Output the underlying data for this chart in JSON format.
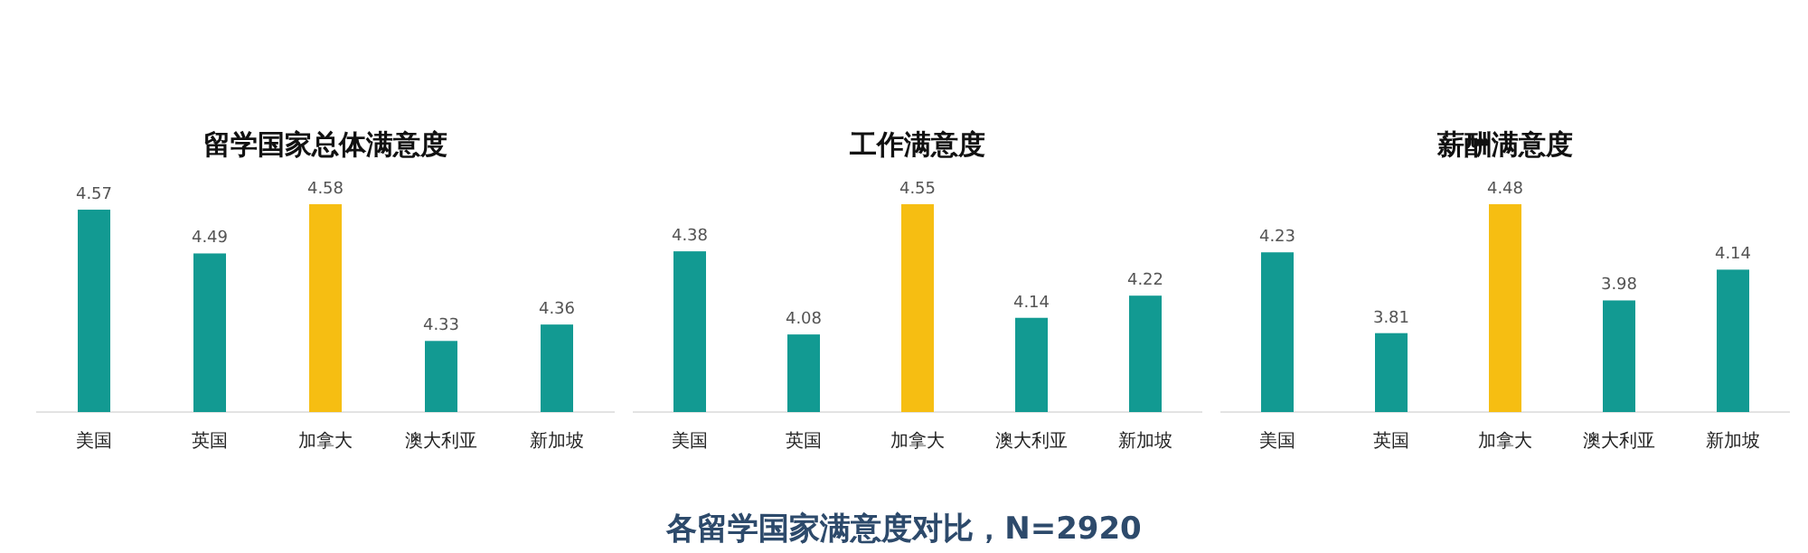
{
  "chart_data": [
    {
      "type": "bar",
      "title": "留学国家总体满意度",
      "categories": [
        "美国",
        "英国",
        "加拿大",
        "澳大利亚",
        "新加坡"
      ],
      "values": [
        4.57,
        4.49,
        4.58,
        4.33,
        4.36
      ],
      "colors": [
        "#129a92",
        "#129a92",
        "#f6be12",
        "#129a92",
        "#129a92"
      ],
      "ylim": [
        4.2,
        4.58
      ],
      "data_labels": true,
      "tick_labels": "x"
    },
    {
      "type": "bar",
      "title": "工作满意度",
      "categories": [
        "美国",
        "英国",
        "加拿大",
        "澳大利亚",
        "新加坡"
      ],
      "values": [
        4.38,
        4.08,
        4.55,
        4.14,
        4.22
      ],
      "colors": [
        "#129a92",
        "#129a92",
        "#f6be12",
        "#129a92",
        "#129a92"
      ],
      "ylim": [
        3.8,
        4.55
      ],
      "data_labels": true,
      "tick_labels": "x",
      "annotations": [
        "各留学国家满意度对比，N=2920"
      ]
    },
    {
      "type": "bar",
      "title": "薪酬满意度",
      "categories": [
        "美国",
        "英国",
        "加拿大",
        "澳大利亚",
        "新加坡"
      ],
      "values": [
        4.23,
        3.81,
        4.48,
        3.98,
        4.14
      ],
      "colors": [
        "#129a92",
        "#129a92",
        "#f6be12",
        "#129a92",
        "#129a92"
      ],
      "ylim": [
        3.4,
        4.48
      ],
      "data_labels": true,
      "tick_labels": "x"
    }
  ]
}
